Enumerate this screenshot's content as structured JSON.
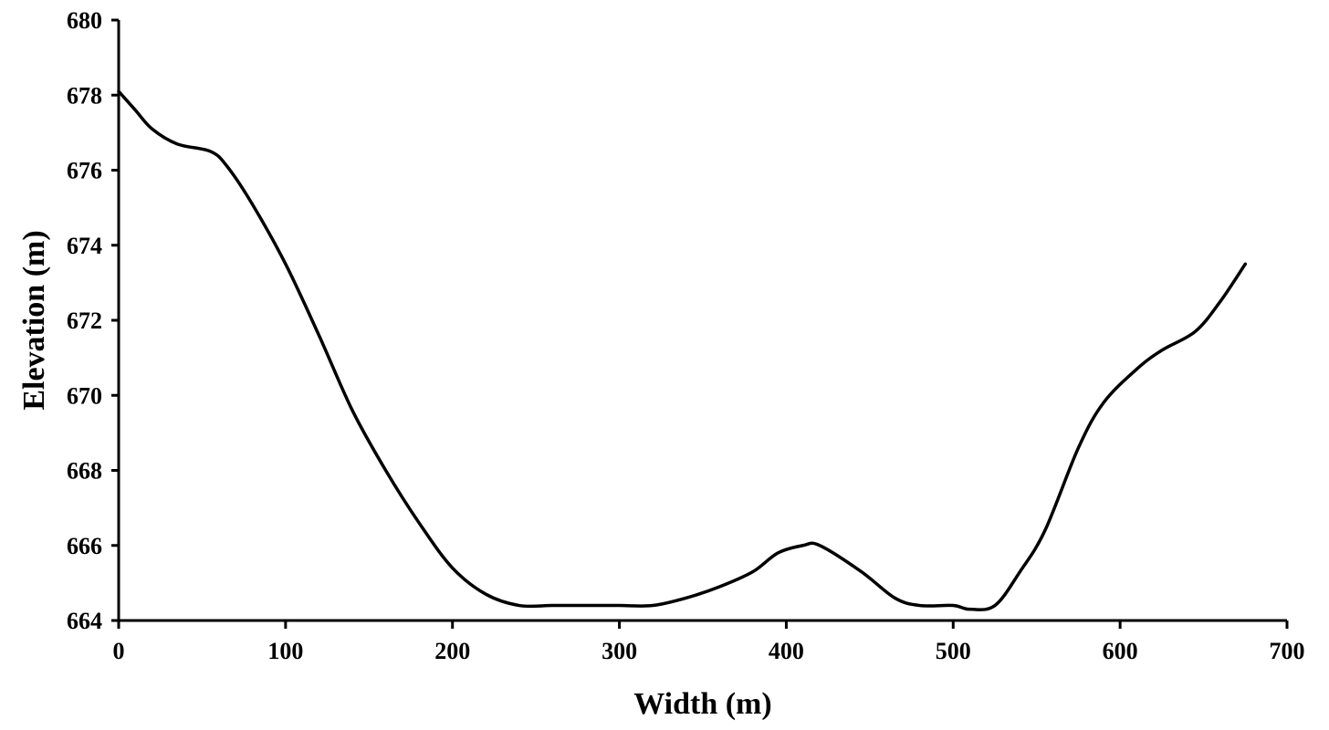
{
  "chart_data": {
    "type": "line",
    "title": "",
    "xlabel": "Width (m)",
    "ylabel": "Elevation (m)",
    "xlim": [
      0,
      700
    ],
    "ylim": [
      664,
      680
    ],
    "x_ticks": [
      0,
      100,
      200,
      300,
      400,
      500,
      600,
      700
    ],
    "y_ticks": [
      664,
      666,
      668,
      670,
      672,
      674,
      676,
      678,
      680
    ],
    "x_tick_labels": [
      "0",
      "100",
      "200",
      "300",
      "400",
      "500",
      "600",
      "700"
    ],
    "y_tick_labels": [
      "664",
      "666",
      "668",
      "670",
      "672",
      "674",
      "676",
      "678",
      "680"
    ],
    "grid": false,
    "legend": "none",
    "line_color": "#000000",
    "series": [
      {
        "x": [
          0,
          10,
          20,
          35,
          55,
          65,
          80,
          100,
          120,
          140,
          160,
          180,
          200,
          220,
          240,
          260,
          280,
          300,
          320,
          340,
          360,
          380,
          395,
          410,
          420,
          445,
          465,
          480,
          500,
          510,
          525,
          540,
          555,
          575,
          590,
          610,
          625,
          645,
          660,
          675
        ],
        "y": [
          678.1,
          677.6,
          677.1,
          676.7,
          676.5,
          676.1,
          675.1,
          673.5,
          671.6,
          669.6,
          668.0,
          666.6,
          665.4,
          664.7,
          664.4,
          664.4,
          664.4,
          664.4,
          664.4,
          664.6,
          664.9,
          665.3,
          665.8,
          666.0,
          666.0,
          665.3,
          664.6,
          664.4,
          664.4,
          664.3,
          664.4,
          665.3,
          666.4,
          668.6,
          669.8,
          670.7,
          671.2,
          671.7,
          672.5,
          673.5
        ]
      }
    ]
  }
}
